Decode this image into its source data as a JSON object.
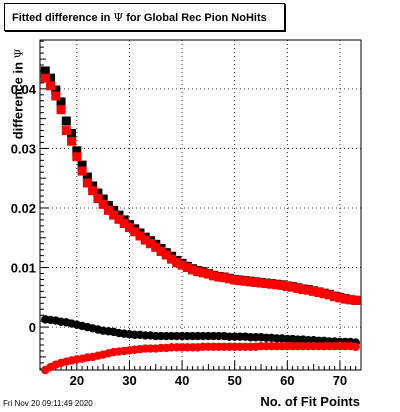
{
  "chart_data": {
    "type": "scatter",
    "title_prefix": "Fitted difference in",
    "title_symbol": "Ψ",
    "title_suffix": "for Global Rec Pion NoHits",
    "xlabel": "No. of Fit Points",
    "ylabel_prefix": "difference in",
    "ylabel_symbol": "Ψ",
    "xlim": [
      13,
      74
    ],
    "ylim": [
      -0.0072,
      0.0482
    ],
    "xticks": [
      20,
      30,
      40,
      50,
      60,
      70
    ],
    "yticks": [
      0,
      0.01,
      0.02,
      0.03,
      0.04
    ],
    "ytick_labels": [
      "0",
      "0.01",
      "0.02",
      "0.03",
      "0.04"
    ],
    "grid": true,
    "x": [
      14,
      15,
      16,
      17,
      18,
      19,
      20,
      21,
      22,
      23,
      24,
      25,
      26,
      27,
      28,
      29,
      30,
      31,
      32,
      33,
      34,
      35,
      36,
      37,
      38,
      39,
      40,
      41,
      42,
      43,
      44,
      45,
      46,
      47,
      48,
      49,
      50,
      51,
      52,
      53,
      54,
      55,
      56,
      57,
      58,
      59,
      60,
      61,
      62,
      63,
      64,
      65,
      66,
      67,
      68,
      69,
      70,
      71,
      72,
      73
    ],
    "series": [
      {
        "color": "#000000",
        "marker": "square",
        "values": [
          0.043,
          0.0418,
          0.0398,
          0.0378,
          0.0346,
          0.0325,
          0.0296,
          0.0272,
          0.0252,
          0.0237,
          0.0225,
          0.0215,
          0.0204,
          0.0196,
          0.0188,
          0.018,
          0.0172,
          0.0165,
          0.0158,
          0.0151,
          0.0145,
          0.0139,
          0.0132,
          0.0125,
          0.0119,
          0.0112,
          0.0107,
          0.0102,
          0.0098,
          0.0095,
          0.0093,
          0.009,
          0.0087,
          0.0085,
          0.0084,
          0.0082,
          0.008,
          0.0079,
          0.0078,
          0.0077,
          0.0076,
          0.0075,
          0.0074,
          0.0073,
          0.0072,
          0.0071,
          0.0069,
          0.0068,
          0.0066,
          0.0064,
          0.0063,
          0.0061,
          0.0059,
          0.0057,
          0.0055,
          0.0052,
          0.005,
          0.0048,
          0.0046,
          0.0045
        ]
      },
      {
        "color": "#ff0000",
        "marker": "square",
        "values": [
          0.0418,
          0.0405,
          0.0388,
          0.0365,
          0.033,
          0.0312,
          0.0286,
          0.0262,
          0.0242,
          0.0229,
          0.0216,
          0.0206,
          0.0196,
          0.0188,
          0.0181,
          0.0174,
          0.0167,
          0.016,
          0.0153,
          0.0146,
          0.014,
          0.0134,
          0.0127,
          0.0121,
          0.0114,
          0.0108,
          0.0104,
          0.01,
          0.0096,
          0.0093,
          0.0091,
          0.0089,
          0.0086,
          0.0084,
          0.0083,
          0.0081,
          0.0079,
          0.0078,
          0.0077,
          0.0076,
          0.0075,
          0.0074,
          0.0073,
          0.0072,
          0.0071,
          0.007,
          0.0068,
          0.0067,
          0.0065,
          0.0063,
          0.0062,
          0.006,
          0.0058,
          0.0056,
          0.0054,
          0.0051,
          0.0049,
          0.0047,
          0.0046,
          0.0045
        ]
      },
      {
        "color": "#000000",
        "marker": "circle",
        "values": [
          0.0013,
          0.0012,
          0.0011,
          0.0009,
          0.0008,
          0.0006,
          0.0004,
          0.0002,
          0.0,
          -0.0002,
          -0.0004,
          -0.0006,
          -0.0007,
          -0.0008,
          -0.001,
          -0.0011,
          -0.0012,
          -0.0013,
          -0.0013,
          -0.0014,
          -0.0014,
          -0.0015,
          -0.0015,
          -0.0015,
          -0.0015,
          -0.0015,
          -0.0015,
          -0.0015,
          -0.0015,
          -0.0015,
          -0.0015,
          -0.0015,
          -0.0015,
          -0.0015,
          -0.0015,
          -0.0016,
          -0.0016,
          -0.0016,
          -0.0016,
          -0.0017,
          -0.0017,
          -0.0017,
          -0.0018,
          -0.0018,
          -0.0019,
          -0.0019,
          -0.002,
          -0.002,
          -0.0021,
          -0.0021,
          -0.0022,
          -0.0022,
          -0.0023,
          -0.0023,
          -0.0024,
          -0.0024,
          -0.0025,
          -0.0025,
          -0.0025,
          -0.0026
        ]
      },
      {
        "color": "#ff0000",
        "marker": "circle",
        "values": [
          -0.0072,
          -0.0067,
          -0.0063,
          -0.006,
          -0.0058,
          -0.0056,
          -0.0054,
          -0.0053,
          -0.0051,
          -0.005,
          -0.0048,
          -0.0046,
          -0.0044,
          -0.0042,
          -0.0041,
          -0.004,
          -0.0039,
          -0.0038,
          -0.0037,
          -0.0036,
          -0.0036,
          -0.0036,
          -0.0035,
          -0.0035,
          -0.0034,
          -0.0034,
          -0.0034,
          -0.0034,
          -0.0034,
          -0.0034,
          -0.0033,
          -0.0033,
          -0.0033,
          -0.0033,
          -0.0033,
          -0.0033,
          -0.0033,
          -0.0033,
          -0.0033,
          -0.0033,
          -0.0033,
          -0.0032,
          -0.0032,
          -0.0032,
          -0.0032,
          -0.0032,
          -0.0032,
          -0.0032,
          -0.0032,
          -0.0032,
          -0.0032,
          -0.0032,
          -0.0032,
          -0.0032,
          -0.0032,
          -0.0032,
          -0.0032,
          -0.0032,
          -0.0032,
          -0.0033
        ]
      }
    ]
  },
  "footer": {
    "timestamp": "Fri Nov 20 09:11:49 2020"
  }
}
